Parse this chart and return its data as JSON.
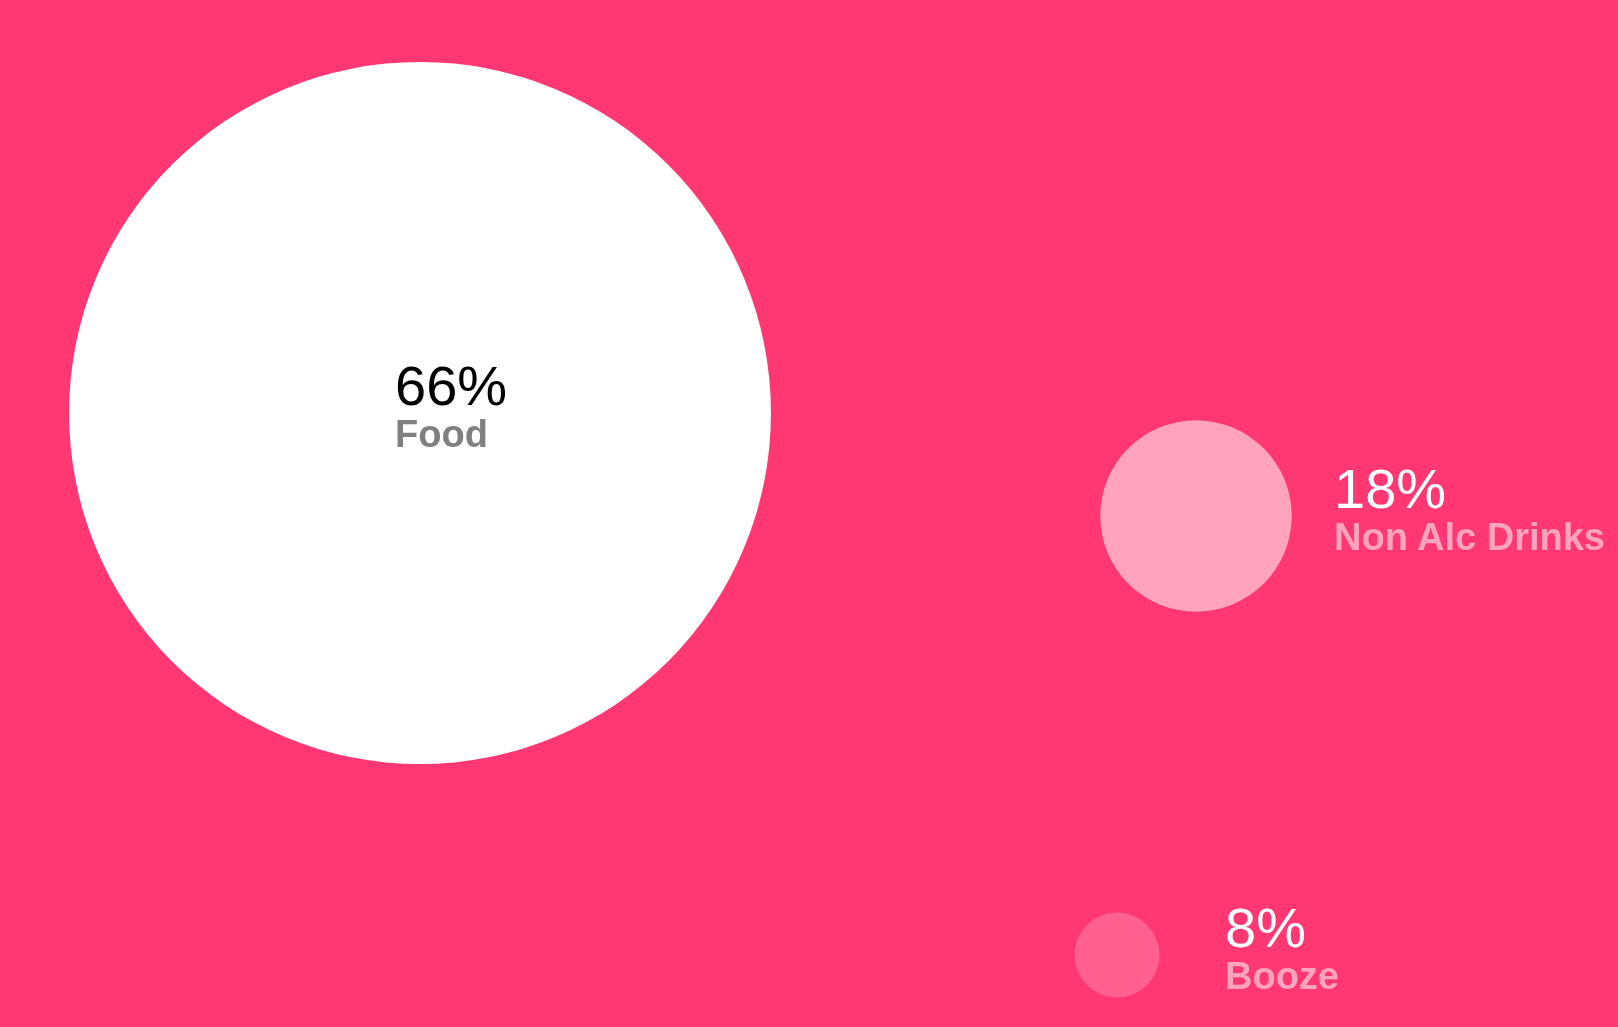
{
  "chart_data": {
    "type": "other",
    "categories": [
      "Food",
      "Non Alc Drinks",
      "Booze"
    ],
    "values": [
      66,
      18,
      8
    ],
    "value_labels": [
      "66%",
      "18%",
      "8%"
    ],
    "colors": [
      "#ffffff",
      "#ffa3bf",
      "#ff6090"
    ]
  }
}
